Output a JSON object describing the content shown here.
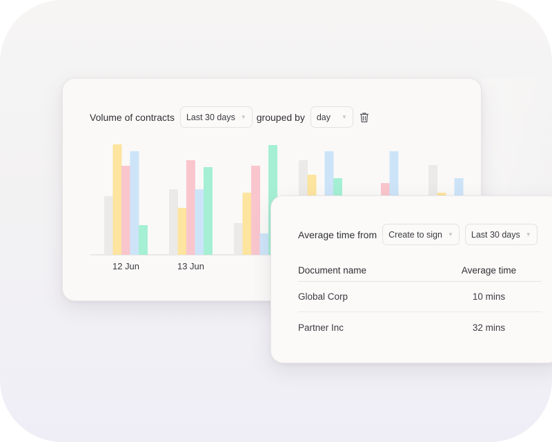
{
  "colors": {
    "gray": "#ebeae8",
    "yellow": "#fde49f",
    "pink": "#f9c6cd",
    "blue": "#cde4f8",
    "mint": "#a5efd4",
    "grid_line": "#d8d6d4"
  },
  "volume_card": {
    "title": "Volume of contracts",
    "period_select": "Last 30 days",
    "grouped_label": "grouped by",
    "group_select": "day",
    "delete_icon": "trash-icon"
  },
  "chart_data": {
    "type": "bar",
    "categories": [
      "12 Jun",
      "13 Jun",
      "",
      "",
      "",
      ""
    ],
    "series": [
      {
        "color": "gray",
        "values": [
          85,
          95,
          46,
          137,
          null,
          130
        ]
      },
      {
        "color": "yellow",
        "values": [
          160,
          68,
          90,
          116,
          null,
          90
        ]
      },
      {
        "color": "pink",
        "values": [
          129,
          137,
          129,
          null,
          104,
          null
        ]
      },
      {
        "color": "blue",
        "values": [
          150,
          95,
          31,
          150,
          150,
          111
        ]
      },
      {
        "color": "mint",
        "values": [
          43,
          127,
          159,
          111,
          null,
          null
        ]
      }
    ]
  },
  "avg_card": {
    "title": "Average time from",
    "stage_select": "Create to sign",
    "period_select": "Last 30 days",
    "columns": [
      "Document name",
      "Average time"
    ],
    "rows": [
      {
        "name": "Global Corp",
        "time": "10 mins"
      },
      {
        "name": "Partner Inc",
        "time": "32 mins"
      }
    ]
  }
}
